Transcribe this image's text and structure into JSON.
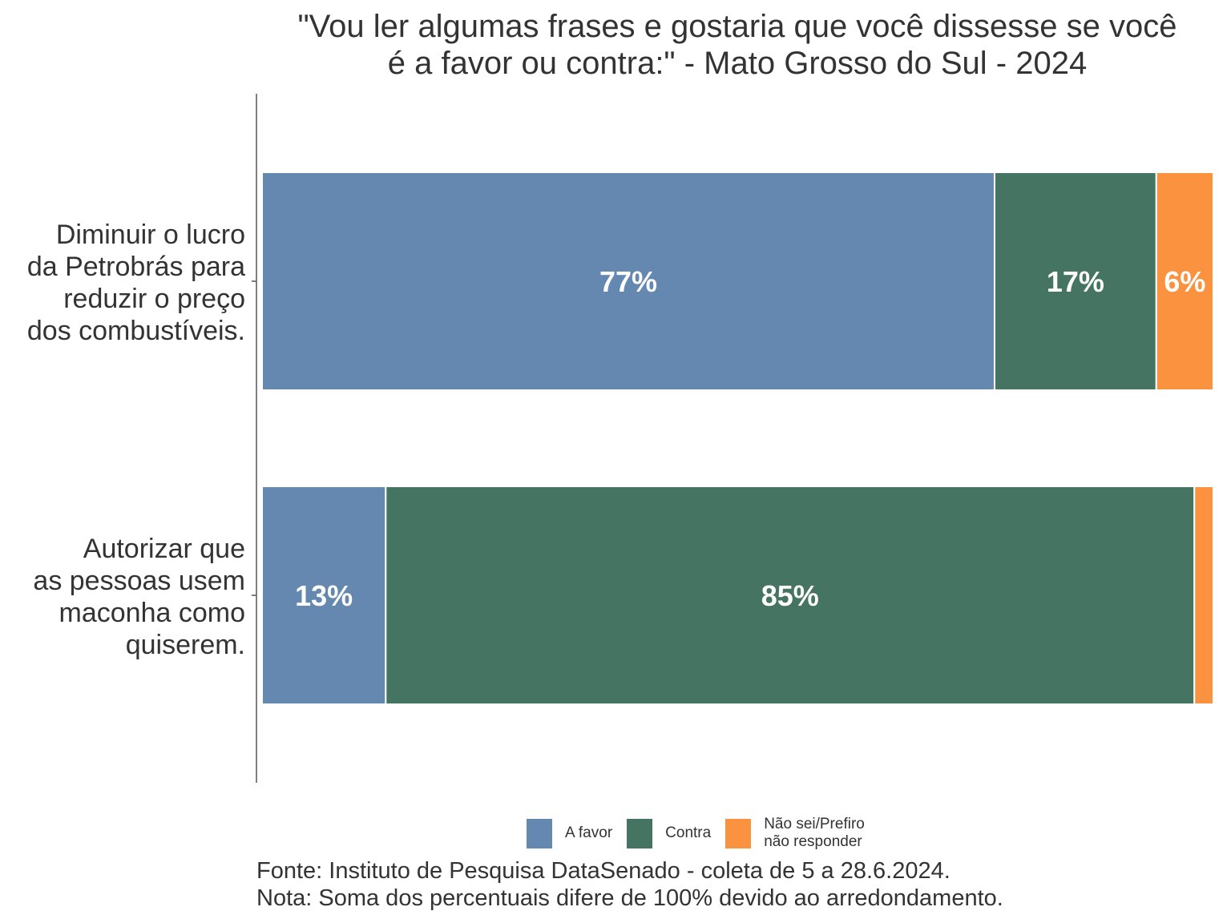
{
  "chart_data": {
    "type": "bar",
    "orientation": "horizontal",
    "stacked": true,
    "title": "\"Vou ler algumas frases e gostaria que você dissesse se você é a favor ou contra:\" - Mato Grosso do Sul - 2024",
    "categories": [
      "Diminuir o lucro da Petrobrás para reduzir o preço dos combustíveis.",
      "Autorizar que as pessoas usem maconha como quiserem."
    ],
    "category_lines": [
      [
        "Diminuir o lucro",
        "da Petrobrás para",
        "reduzir o preço",
        "dos combustíveis."
      ],
      [
        "Autorizar que",
        "as pessoas usem",
        "maconha como",
        "quiserem."
      ]
    ],
    "series": [
      {
        "name": "A favor",
        "color": "#6588b0",
        "values": [
          77,
          13
        ],
        "labels": [
          "77%",
          "13%"
        ]
      },
      {
        "name": "Contra",
        "color": "#457463",
        "values": [
          17,
          85
        ],
        "labels": [
          "17%",
          "85%"
        ]
      },
      {
        "name": "Não sei/Prefiro não responder",
        "color": "#fa923f",
        "values": [
          6,
          2
        ],
        "labels": [
          "6%",
          null
        ]
      }
    ],
    "xlim": [
      0,
      100
    ],
    "legend_position": "bottom",
    "legend_lines": [
      [
        "A favor"
      ],
      [
        "Contra"
      ],
      [
        "Não sei/Prefiro",
        "não responder"
      ]
    ],
    "title_lines": [
      "\"Vou ler algumas frases e gostaria que você dissesse se você",
      "é a favor ou contra:\" - Mato Grosso do Sul - 2024"
    ]
  },
  "caption": {
    "source": "Fonte: Instituto de Pesquisa DataSenado - coleta de 5 a 28.6.2024.",
    "note": "Nota: Soma dos percentuais difere de 100% devido ao arredondamento."
  }
}
